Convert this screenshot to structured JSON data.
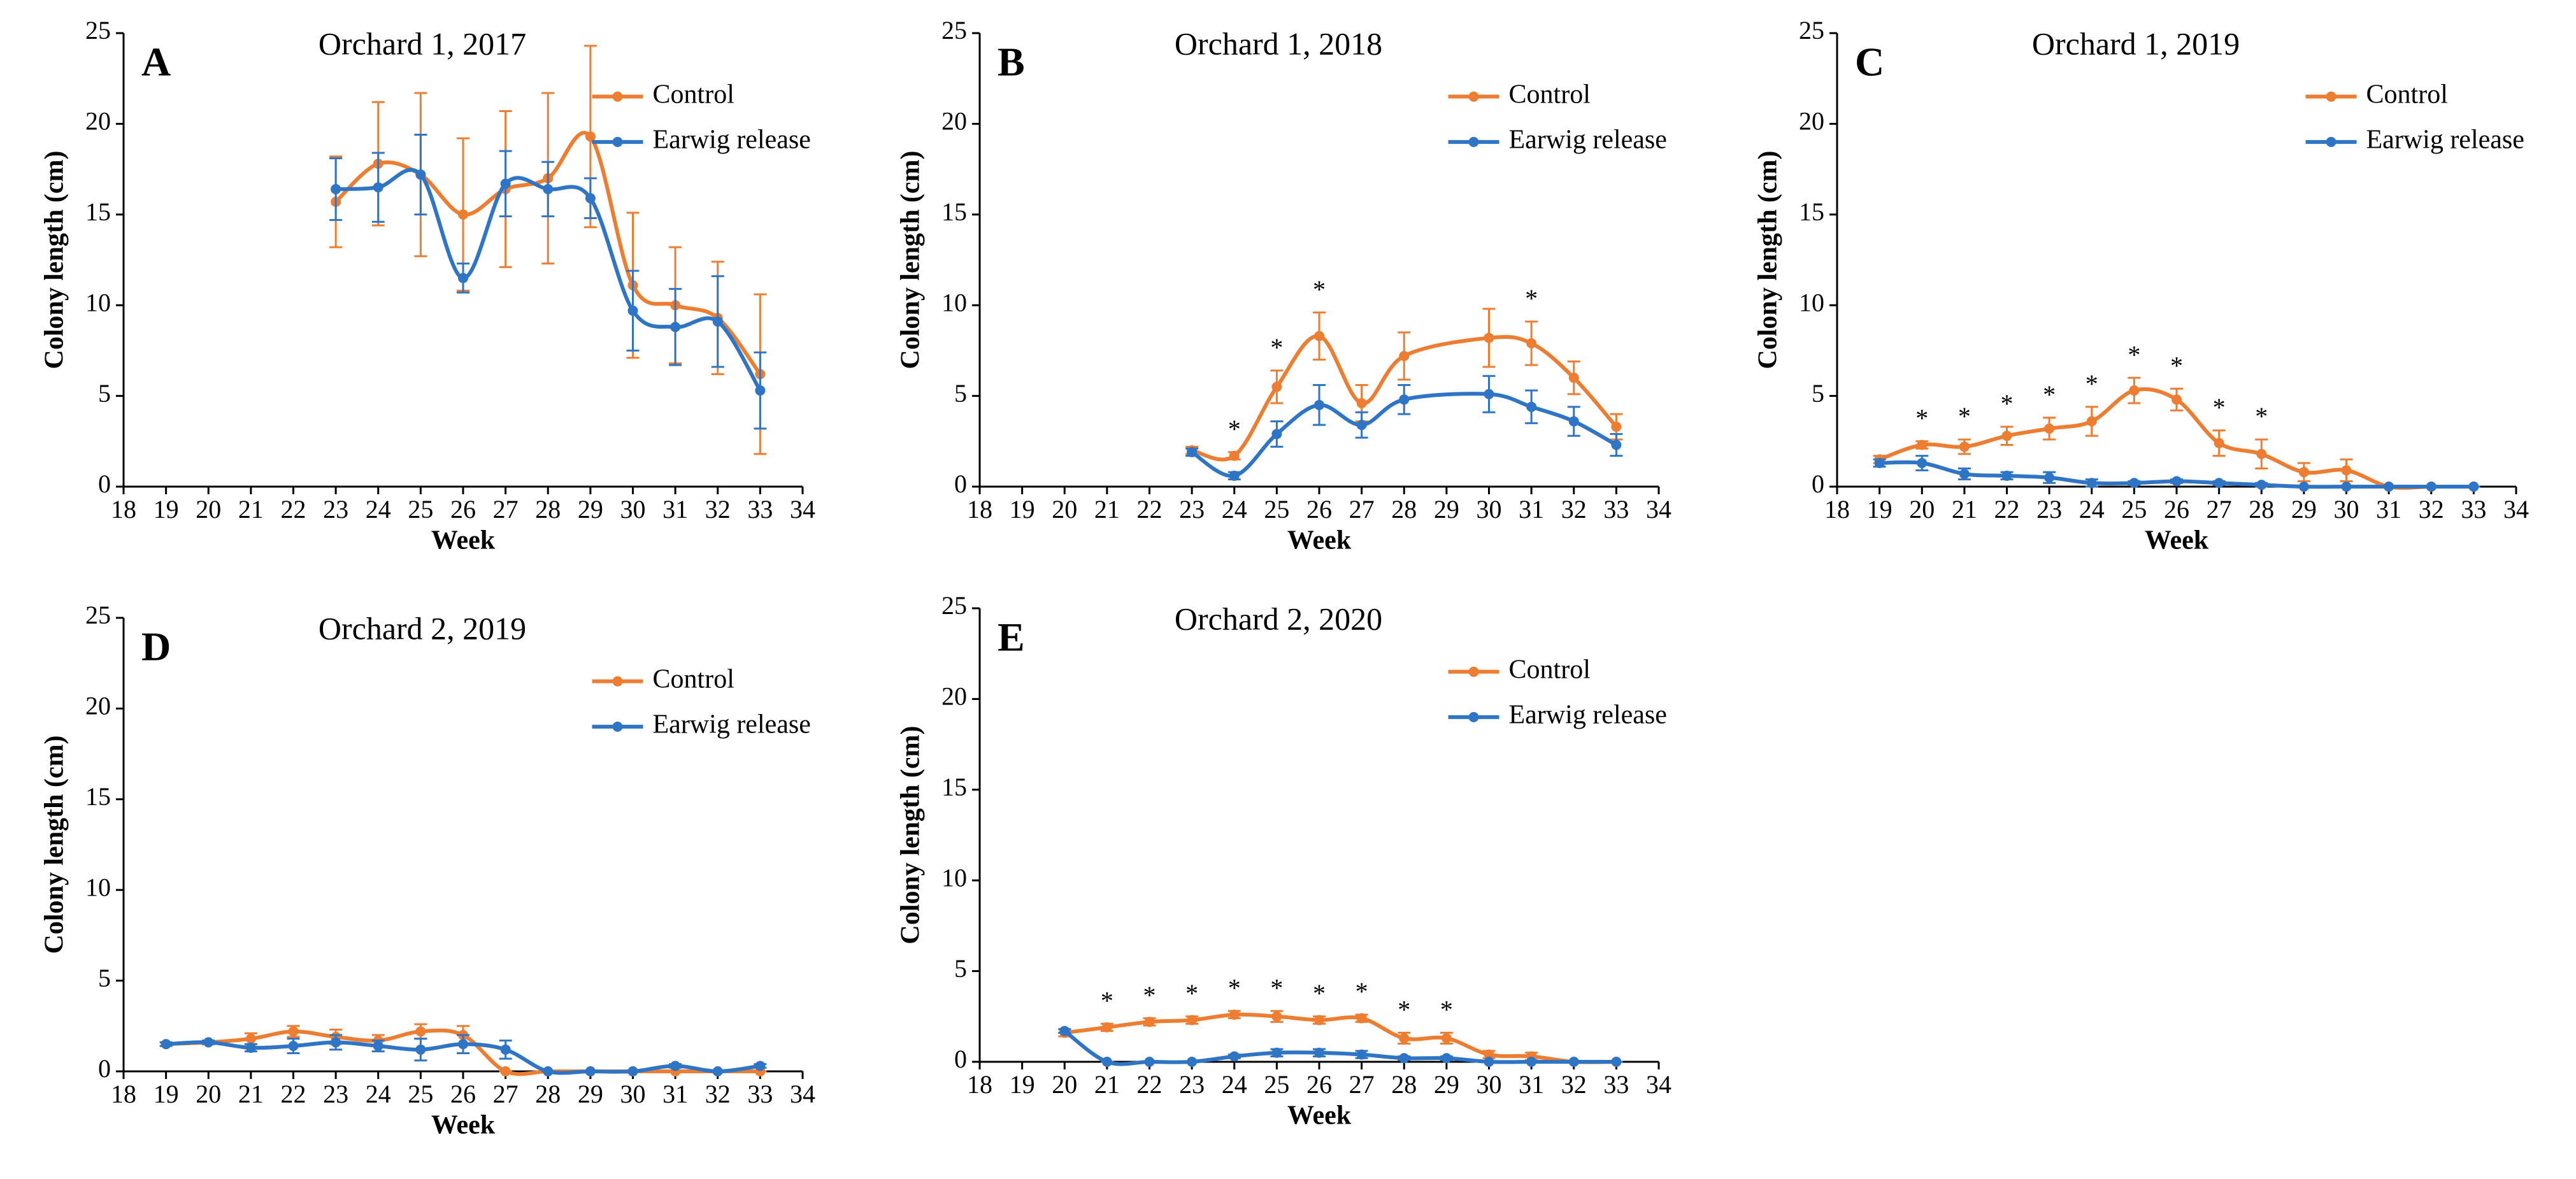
{
  "chart_data": [
    {
      "type": "line",
      "panel_label": "A",
      "title": "Orchard 1, 2017",
      "xlabel": "Week",
      "ylabel": "Colony length (cm)",
      "xlim": [
        18,
        34
      ],
      "xticks": [
        18,
        19,
        20,
        21,
        22,
        23,
        24,
        25,
        26,
        27,
        28,
        29,
        30,
        31,
        32,
        33,
        34
      ],
      "ylim": [
        0,
        25
      ],
      "yticks": [
        0,
        5,
        10,
        15,
        20,
        25
      ],
      "legend": "upper right",
      "x": [
        23,
        24,
        25,
        26,
        27,
        28,
        29,
        30,
        31,
        32,
        33
      ],
      "series": [
        {
          "name": "Control",
          "color": "#ed7d31",
          "values": [
            15.7,
            17.8,
            17.2,
            15.0,
            16.4,
            17.0,
            19.3,
            11.1,
            10.0,
            9.3,
            6.2
          ],
          "errors": [
            2.5,
            3.4,
            4.5,
            4.2,
            4.3,
            4.7,
            5.0,
            4.0,
            3.2,
            3.1,
            4.4
          ]
        },
        {
          "name": "Earwig release",
          "color": "#2e75c6",
          "values": [
            16.4,
            16.5,
            17.2,
            11.5,
            16.7,
            16.4,
            15.9,
            9.7,
            8.8,
            9.1,
            5.3
          ],
          "errors": [
            1.7,
            1.9,
            2.2,
            0.8,
            1.8,
            1.5,
            1.1,
            2.2,
            2.1,
            2.5,
            2.1
          ]
        }
      ],
      "annotations": []
    },
    {
      "type": "line",
      "panel_label": "B",
      "title": "Orchard 1, 2018",
      "xlabel": "Week",
      "ylabel": "Colony length (cm)",
      "xlim": [
        18,
        34
      ],
      "xticks": [
        18,
        19,
        20,
        21,
        22,
        23,
        24,
        25,
        26,
        27,
        28,
        29,
        30,
        31,
        32,
        33,
        34
      ],
      "ylim": [
        0,
        25
      ],
      "yticks": [
        0,
        5,
        10,
        15,
        20,
        25
      ],
      "legend": "upper right",
      "x": [
        23,
        24,
        25,
        26,
        27,
        28,
        30,
        31,
        32,
        33
      ],
      "series": [
        {
          "name": "Control",
          "color": "#ed7d31",
          "values": [
            2.0,
            1.7,
            5.5,
            8.3,
            4.6,
            7.2,
            8.2,
            7.9,
            6.0,
            3.3
          ],
          "errors": [
            0.2,
            0.2,
            0.9,
            1.3,
            1.0,
            1.3,
            1.6,
            1.2,
            0.9,
            0.7
          ]
        },
        {
          "name": "Earwig release",
          "color": "#2e75c6",
          "values": [
            1.9,
            0.6,
            2.9,
            4.5,
            3.4,
            4.8,
            5.1,
            4.4,
            3.6,
            2.3
          ],
          "errors": [
            0.2,
            0.2,
            0.7,
            1.1,
            0.7,
            0.8,
            1.0,
            0.9,
            0.8,
            0.6
          ]
        }
      ],
      "annotations": [
        {
          "x": 24,
          "text": "*"
        },
        {
          "x": 25,
          "text": "*"
        },
        {
          "x": 26,
          "text": "*"
        },
        {
          "x": 31,
          "text": "*"
        }
      ]
    },
    {
      "type": "line",
      "panel_label": "C",
      "title": "Orchard 1, 2019",
      "xlabel": "Week",
      "ylabel": "Colony length (cm)",
      "xlim": [
        18,
        34
      ],
      "xticks": [
        18,
        19,
        20,
        21,
        22,
        23,
        24,
        25,
        26,
        27,
        28,
        29,
        30,
        31,
        32,
        33,
        34
      ],
      "ylim": [
        0,
        25
      ],
      "yticks": [
        0,
        5,
        10,
        15,
        20,
        25
      ],
      "legend": "upper right",
      "x": [
        19,
        20,
        21,
        22,
        23,
        24,
        25,
        26,
        27,
        28,
        29,
        30,
        31,
        32,
        33
      ],
      "series": [
        {
          "name": "Control",
          "color": "#ed7d31",
          "values": [
            1.5,
            2.3,
            2.2,
            2.8,
            3.2,
            3.6,
            5.3,
            4.8,
            2.4,
            1.8,
            0.8,
            0.9,
            0,
            0,
            0
          ],
          "errors": [
            0.2,
            0.2,
            0.4,
            0.5,
            0.6,
            0.8,
            0.7,
            0.6,
            0.7,
            0.8,
            0.5,
            0.6,
            0,
            0,
            0
          ]
        },
        {
          "name": "Earwig release",
          "color": "#2e75c6",
          "values": [
            1.3,
            1.3,
            0.7,
            0.6,
            0.5,
            0.2,
            0.2,
            0.3,
            0.2,
            0.1,
            0,
            0,
            0,
            0,
            0
          ],
          "errors": [
            0.2,
            0.4,
            0.3,
            0.2,
            0.3,
            0.2,
            0.1,
            0.1,
            0.1,
            0.1,
            0,
            0,
            0,
            0,
            0
          ]
        }
      ],
      "annotations": [
        {
          "x": 20,
          "text": "*"
        },
        {
          "x": 21,
          "text": "*"
        },
        {
          "x": 22,
          "text": "*"
        },
        {
          "x": 23,
          "text": "*"
        },
        {
          "x": 24,
          "text": "*"
        },
        {
          "x": 25,
          "text": "*"
        },
        {
          "x": 26,
          "text": "*"
        },
        {
          "x": 27,
          "text": "*"
        },
        {
          "x": 28,
          "text": "*"
        }
      ]
    },
    {
      "type": "line",
      "panel_label": "D",
      "title": "Orchard 2, 2019",
      "xlabel": "Week",
      "ylabel": "Colony length (cm)",
      "xlim": [
        18,
        34
      ],
      "xticks": [
        18,
        19,
        20,
        21,
        22,
        23,
        24,
        25,
        26,
        27,
        28,
        29,
        30,
        31,
        32,
        33,
        34
      ],
      "ylim": [
        0,
        25
      ],
      "yticks": [
        0,
        5,
        10,
        15,
        20,
        25
      ],
      "legend": "upper right",
      "x": [
        19,
        20,
        21,
        22,
        23,
        24,
        25,
        26,
        27,
        28,
        29,
        30,
        31,
        32,
        33
      ],
      "series": [
        {
          "name": "Control",
          "color": "#ed7d31",
          "values": [
            1.5,
            1.6,
            1.8,
            2.2,
            1.9,
            1.7,
            2.2,
            2.0,
            0,
            0,
            0,
            0,
            0,
            0,
            0
          ],
          "errors": [
            0.1,
            0.1,
            0.3,
            0.3,
            0.4,
            0.3,
            0.4,
            0.5,
            0,
            0,
            0,
            0,
            0,
            0,
            0
          ]
        },
        {
          "name": "Earwig release",
          "color": "#2e75c6",
          "values": [
            1.5,
            1.6,
            1.3,
            1.4,
            1.6,
            1.4,
            1.2,
            1.5,
            1.2,
            0,
            0,
            0,
            0.3,
            0,
            0.3
          ],
          "errors": [
            0.1,
            0.1,
            0.2,
            0.4,
            0.4,
            0.3,
            0.6,
            0.5,
            0.5,
            0,
            0,
            0,
            0.1,
            0,
            0.1
          ]
        }
      ],
      "annotations": []
    },
    {
      "type": "line",
      "panel_label": "E",
      "title": "Orchard 2, 2020",
      "xlabel": "Week",
      "ylabel": "Colony length (cm)",
      "xlim": [
        18,
        34
      ],
      "xticks": [
        18,
        19,
        20,
        21,
        22,
        23,
        24,
        25,
        26,
        27,
        28,
        29,
        30,
        31,
        32,
        33,
        34
      ],
      "ylim": [
        0,
        25
      ],
      "yticks": [
        0,
        5,
        10,
        15,
        20,
        25
      ],
      "legend": "upper right",
      "x": [
        20,
        21,
        22,
        23,
        24,
        25,
        26,
        27,
        28,
        29,
        30,
        31,
        32,
        33
      ],
      "series": [
        {
          "name": "Control",
          "color": "#ed7d31",
          "values": [
            1.6,
            1.9,
            2.2,
            2.3,
            2.6,
            2.5,
            2.3,
            2.4,
            1.3,
            1.3,
            0.4,
            0.3,
            0,
            0
          ],
          "errors": [
            0.2,
            0.2,
            0.2,
            0.2,
            0.2,
            0.3,
            0.2,
            0.2,
            0.3,
            0.3,
            0.2,
            0.2,
            0,
            0
          ]
        },
        {
          "name": "Earwig release",
          "color": "#2e75c6",
          "values": [
            1.7,
            0,
            0,
            0,
            0.3,
            0.5,
            0.5,
            0.4,
            0.2,
            0.2,
            0,
            0,
            0,
            0
          ],
          "errors": [
            0.1,
            0,
            0,
            0,
            0.1,
            0.2,
            0.2,
            0.2,
            0.1,
            0.1,
            0,
            0,
            0,
            0
          ]
        }
      ],
      "annotations": [
        {
          "x": 21,
          "text": "*"
        },
        {
          "x": 22,
          "text": "*"
        },
        {
          "x": 23,
          "text": "*"
        },
        {
          "x": 24,
          "text": "*"
        },
        {
          "x": 25,
          "text": "*"
        },
        {
          "x": 26,
          "text": "*"
        },
        {
          "x": 27,
          "text": "*"
        },
        {
          "x": 28,
          "text": "*"
        },
        {
          "x": 29,
          "text": "*"
        }
      ]
    }
  ]
}
